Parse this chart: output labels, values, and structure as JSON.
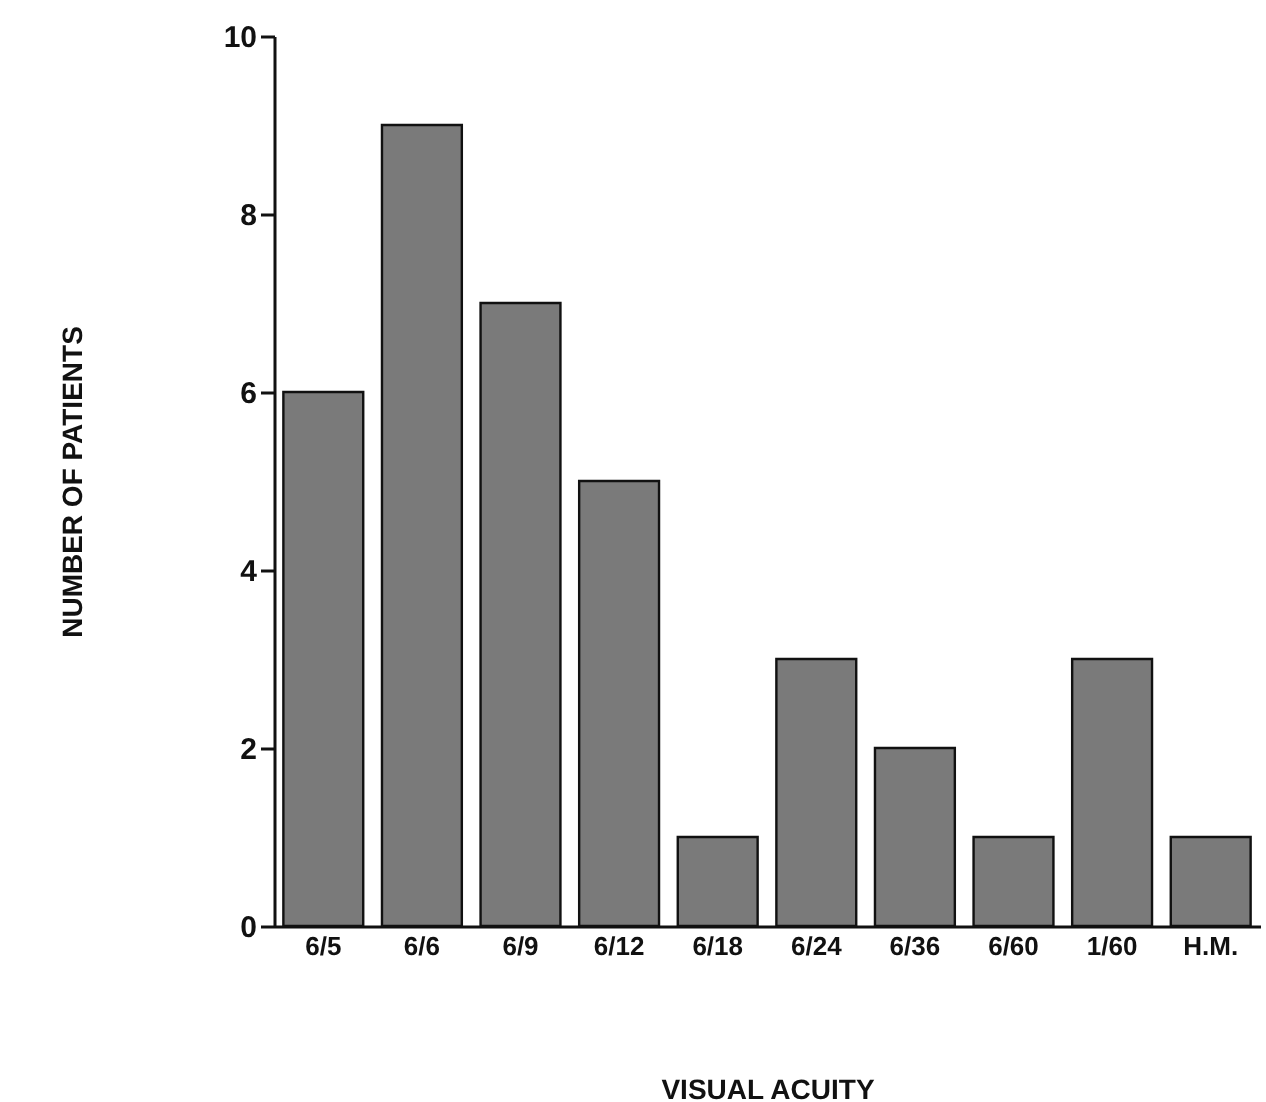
{
  "chart_data": {
    "type": "bar",
    "xlabel": "VISUAL ACUITY",
    "ylabel": "NUMBER OF PATIENTS",
    "categories": [
      "6/5",
      "6/6",
      "6/9",
      "6/12",
      "6/18",
      "6/24",
      "6/36",
      "6/60",
      "1/60",
      "H.M."
    ],
    "values": [
      6,
      9,
      7,
      5,
      1,
      3,
      2,
      1,
      3,
      1
    ],
    "color": "#7a7a7a",
    "ylim": [
      0,
      10
    ],
    "yticks": [
      0,
      2,
      4,
      6,
      8,
      10
    ],
    "grid": false
  }
}
